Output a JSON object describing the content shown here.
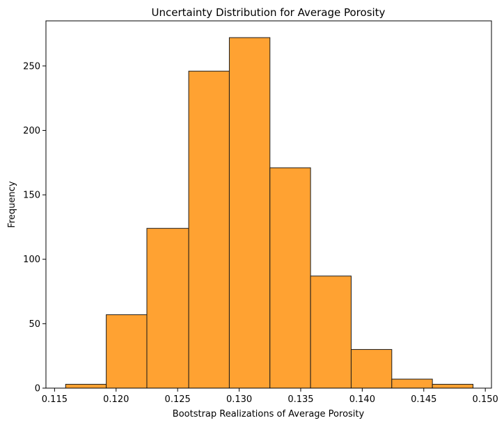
{
  "chart_data": {
    "type": "bar",
    "title": "Uncertainty Distribution for Average Porosity",
    "xlabel": "Bootstrap Realizations of Average Porosity",
    "ylabel": "Frequency",
    "bin_edges": [
      0.1159,
      0.1192,
      0.1225,
      0.1259,
      0.1292,
      0.1325,
      0.1358,
      0.1391,
      0.1424,
      0.1457,
      0.149
    ],
    "values": [
      3,
      57,
      124,
      246,
      272,
      171,
      87,
      30,
      7,
      3
    ],
    "xlim": [
      0.1143,
      0.1505
    ],
    "ylim": [
      0,
      285
    ],
    "xticks": [
      0.115,
      0.12,
      0.125,
      0.13,
      0.135,
      0.14,
      0.145,
      0.15
    ],
    "xtick_labels": [
      "0.115",
      "0.120",
      "0.125",
      "0.130",
      "0.135",
      "0.140",
      "0.145",
      "0.150"
    ],
    "yticks": [
      0,
      50,
      100,
      150,
      200,
      250
    ],
    "ytick_labels": [
      "0",
      "50",
      "100",
      "150",
      "200",
      "250"
    ],
    "bar_color": "#ffa232",
    "edge_color": "#1a1a1a",
    "grid": false,
    "legend": false
  }
}
